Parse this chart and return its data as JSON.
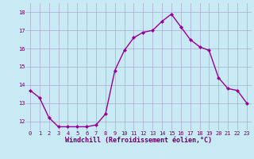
{
  "x": [
    0,
    1,
    2,
    3,
    4,
    5,
    6,
    7,
    8,
    9,
    10,
    11,
    12,
    13,
    14,
    15,
    16,
    17,
    18,
    19,
    20,
    21,
    22,
    23
  ],
  "y": [
    13.7,
    13.3,
    12.2,
    11.7,
    11.7,
    11.7,
    11.7,
    11.8,
    12.4,
    14.8,
    15.9,
    16.6,
    16.9,
    17.0,
    17.5,
    17.9,
    17.2,
    16.5,
    16.1,
    15.9,
    14.4,
    13.8,
    13.7,
    13.0
  ],
  "line_color": "#990099",
  "marker": "D",
  "marker_size": 2,
  "bg_color": "#c8eaf4",
  "grid_color": "#aaaacc",
  "xlabel": "Windchill (Refroidissement éolien,°C)",
  "xlabel_color": "#660066",
  "tick_color": "#660066",
  "ylim": [
    11.5,
    18.5
  ],
  "xlim": [
    -0.5,
    23.5
  ],
  "yticks": [
    12,
    13,
    14,
    15,
    16,
    17,
    18
  ],
  "xticks": [
    0,
    1,
    2,
    3,
    4,
    5,
    6,
    7,
    8,
    9,
    10,
    11,
    12,
    13,
    14,
    15,
    16,
    17,
    18,
    19,
    20,
    21,
    22,
    23
  ],
  "tick_fontsize": 5.0,
  "xlabel_fontsize": 6.0,
  "linewidth": 1.0
}
